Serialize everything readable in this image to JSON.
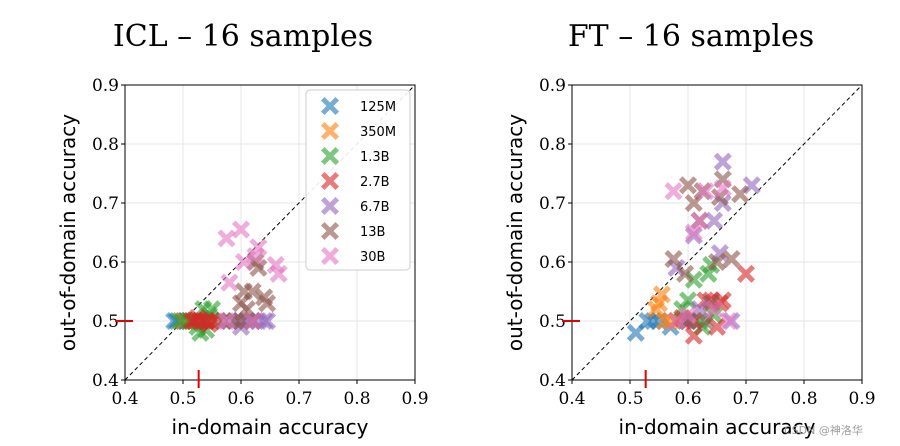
{
  "chart_data": [
    {
      "type": "scatter",
      "title": "ICL – 16 samples",
      "xlabel": "in-domain accuracy",
      "ylabel": "out-of-domain accuracy",
      "xlim": [
        0.4,
        0.9
      ],
      "ylim": [
        0.4,
        0.9
      ],
      "xticks": [
        "0.4",
        "0.5",
        "0.6",
        "0.7",
        "0.8",
        "0.9"
      ],
      "yticks": [
        "0.4",
        "0.5",
        "0.6",
        "0.7",
        "0.8",
        "0.9"
      ],
      "diagonal": true,
      "grid": true,
      "baseline": {
        "x": 0.527,
        "y": 0.5
      },
      "legend": {
        "placement": "top-right"
      },
      "series": [
        {
          "name": "125M",
          "color": "#1f77b4",
          "points": [
            [
              0.485,
              0.5
            ],
            [
              0.49,
              0.5
            ],
            [
              0.5,
              0.5
            ],
            [
              0.505,
              0.5
            ],
            [
              0.51,
              0.5
            ],
            [
              0.52,
              0.5
            ],
            [
              0.525,
              0.5
            ],
            [
              0.53,
              0.5
            ]
          ]
        },
        {
          "name": "350M",
          "color": "#ff7f0e",
          "points": [
            [
              0.5,
              0.5
            ],
            [
              0.51,
              0.5
            ],
            [
              0.52,
              0.5
            ],
            [
              0.525,
              0.5
            ],
            [
              0.535,
              0.5
            ],
            [
              0.54,
              0.5
            ]
          ]
        },
        {
          "name": "1.3B",
          "color": "#2ca02c",
          "points": [
            [
              0.495,
              0.5
            ],
            [
              0.51,
              0.5
            ],
            [
              0.52,
              0.5
            ],
            [
              0.525,
              0.49
            ],
            [
              0.53,
              0.48
            ],
            [
              0.54,
              0.5
            ],
            [
              0.545,
              0.51
            ],
            [
              0.55,
              0.52
            ],
            [
              0.535,
              0.52
            ],
            [
              0.54,
              0.485
            ]
          ]
        },
        {
          "name": "2.7B",
          "color": "#d62728",
          "points": [
            [
              0.515,
              0.5
            ],
            [
              0.52,
              0.5
            ],
            [
              0.53,
              0.5
            ],
            [
              0.54,
              0.5
            ],
            [
              0.55,
              0.5
            ],
            [
              0.56,
              0.5
            ],
            [
              0.545,
              0.495
            ],
            [
              0.525,
              0.505
            ]
          ]
        },
        {
          "name": "6.7B",
          "color": "#9467bd",
          "points": [
            [
              0.58,
              0.5
            ],
            [
              0.6,
              0.5
            ],
            [
              0.61,
              0.5
            ],
            [
              0.62,
              0.5
            ],
            [
              0.63,
              0.5
            ],
            [
              0.64,
              0.5
            ],
            [
              0.645,
              0.5
            ],
            [
              0.6,
              0.49
            ]
          ]
        },
        {
          "name": "13B",
          "color": "#8c564b",
          "points": [
            [
              0.57,
              0.5
            ],
            [
              0.59,
              0.5
            ],
            [
              0.6,
              0.53
            ],
            [
              0.605,
              0.55
            ],
            [
              0.61,
              0.52
            ],
            [
              0.62,
              0.55
            ],
            [
              0.625,
              0.6
            ],
            [
              0.63,
              0.59
            ],
            [
              0.64,
              0.54
            ],
            [
              0.645,
              0.53
            ],
            [
              0.6,
              0.5
            ],
            [
              0.62,
              0.5
            ]
          ]
        },
        {
          "name": "30B",
          "color": "#e377c2",
          "points": [
            [
              0.575,
              0.64
            ],
            [
              0.58,
              0.565
            ],
            [
              0.6,
              0.655
            ],
            [
              0.605,
              0.6
            ],
            [
              0.63,
              0.625
            ],
            [
              0.625,
              0.61
            ],
            [
              0.66,
              0.595
            ],
            [
              0.665,
              0.58
            ],
            [
              0.575,
              0.5
            ],
            [
              0.62,
              0.5
            ]
          ]
        }
      ]
    },
    {
      "type": "scatter",
      "title": "FT – 16 samples",
      "xlabel": "in-domain accuracy",
      "ylabel": "out-of-domain accuracy",
      "xlim": [
        0.4,
        0.9
      ],
      "ylim": [
        0.4,
        0.9
      ],
      "xticks": [
        "0.4",
        "0.5",
        "0.6",
        "0.7",
        "0.8",
        "0.9"
      ],
      "yticks": [
        "0.4",
        "0.5",
        "0.6",
        "0.7",
        "0.8",
        "0.9"
      ],
      "diagonal": true,
      "grid": true,
      "baseline": {
        "x": 0.527,
        "y": 0.5
      },
      "series": [
        {
          "name": "125M",
          "color": "#1f77b4",
          "points": [
            [
              0.51,
              0.48
            ],
            [
              0.53,
              0.5
            ],
            [
              0.54,
              0.5
            ],
            [
              0.55,
              0.5
            ],
            [
              0.57,
              0.49
            ],
            [
              0.58,
              0.5
            ],
            [
              0.595,
              0.5
            ]
          ]
        },
        {
          "name": "350M",
          "color": "#ff7f0e",
          "points": [
            [
              0.545,
              0.52
            ],
            [
              0.55,
              0.53
            ],
            [
              0.555,
              0.545
            ],
            [
              0.56,
              0.5
            ],
            [
              0.57,
              0.5
            ],
            [
              0.58,
              0.5
            ],
            [
              0.6,
              0.5
            ]
          ]
        },
        {
          "name": "1.3B",
          "color": "#2ca02c",
          "points": [
            [
              0.6,
              0.535
            ],
            [
              0.61,
              0.57
            ],
            [
              0.62,
              0.5
            ],
            [
              0.625,
              0.49
            ],
            [
              0.635,
              0.58
            ],
            [
              0.64,
              0.595
            ],
            [
              0.645,
              0.51
            ],
            [
              0.59,
              0.52
            ]
          ]
        },
        {
          "name": "2.7B",
          "color": "#d62728",
          "points": [
            [
              0.59,
              0.505
            ],
            [
              0.61,
              0.475
            ],
            [
              0.63,
              0.535
            ],
            [
              0.64,
              0.535
            ],
            [
              0.65,
              0.49
            ],
            [
              0.655,
              0.53
            ],
            [
              0.66,
              0.535
            ],
            [
              0.7,
              0.58
            ],
            [
              0.61,
              0.5
            ]
          ]
        },
        {
          "name": "6.7B",
          "color": "#9467bd",
          "points": [
            [
              0.58,
              0.59
            ],
            [
              0.61,
              0.645
            ],
            [
              0.645,
              0.67
            ],
            [
              0.655,
              0.615
            ],
            [
              0.66,
              0.7
            ],
            [
              0.66,
              0.77
            ],
            [
              0.71,
              0.73
            ],
            [
              0.675,
              0.5
            ],
            [
              0.6,
              0.5
            ],
            [
              0.62,
              0.52
            ]
          ]
        },
        {
          "name": "13B",
          "color": "#8c564b",
          "points": [
            [
              0.575,
              0.605
            ],
            [
              0.595,
              0.58
            ],
            [
              0.6,
              0.73
            ],
            [
              0.61,
              0.7
            ],
            [
              0.62,
              0.67
            ],
            [
              0.625,
              0.72
            ],
            [
              0.64,
              0.53
            ],
            [
              0.65,
              0.6
            ],
            [
              0.655,
              0.71
            ],
            [
              0.66,
              0.74
            ],
            [
              0.675,
              0.605
            ],
            [
              0.69,
              0.715
            ],
            [
              0.6,
              0.5
            ],
            [
              0.63,
              0.5
            ]
          ]
        },
        {
          "name": "30B",
          "color": "#e377c2",
          "points": [
            [
              0.575,
              0.72
            ],
            [
              0.61,
              0.65
            ],
            [
              0.62,
              0.67
            ],
            [
              0.63,
              0.72
            ],
            [
              0.66,
              0.725
            ],
            [
              0.67,
              0.5
            ],
            [
              0.6,
              0.51
            ],
            [
              0.58,
              0.5
            ],
            [
              0.645,
              0.52
            ]
          ]
        }
      ]
    }
  ],
  "watermark": "CSDN @神洛华"
}
